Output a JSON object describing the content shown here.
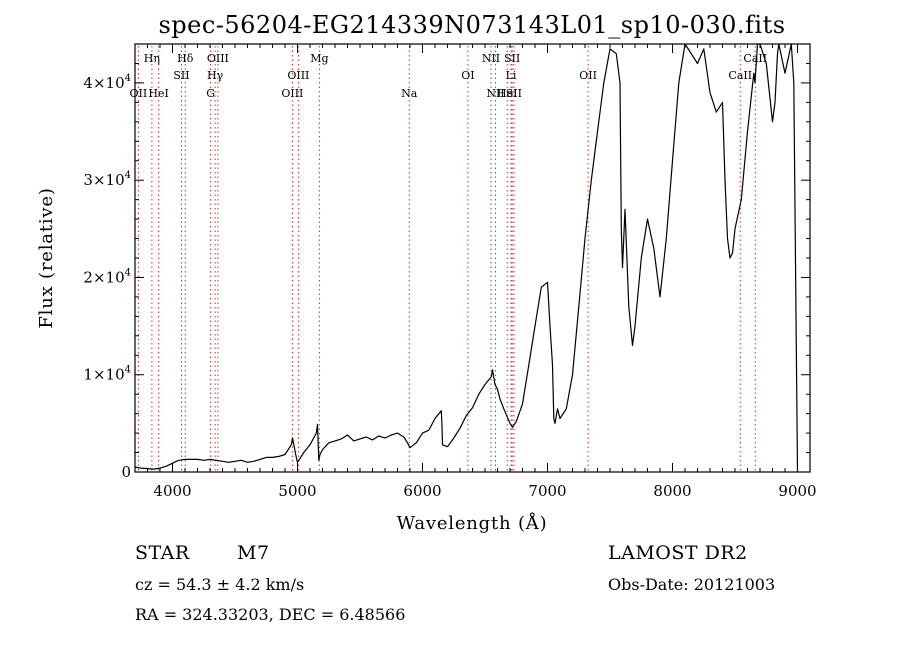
{
  "chart_data": {
    "type": "line",
    "title": "spec-56204-EG214339N073143L01_sp10-030.fits",
    "xlabel": "Wavelength (Å)",
    "ylabel": "Flux (relative)",
    "xlim": [
      3700,
      9100
    ],
    "ylim": [
      0,
      44000
    ],
    "x_ticks": [
      4000,
      5000,
      6000,
      7000,
      8000,
      9000
    ],
    "x_tick_labels": [
      "4000",
      "5000",
      "6000",
      "7000",
      "8000",
      "9000"
    ],
    "y_ticks": [
      0,
      10000,
      20000,
      30000,
      40000
    ],
    "y_tick_labels": [
      {
        "mant": "0",
        "exp": ""
      },
      {
        "mant": "1×10",
        "exp": "4"
      },
      {
        "mant": "2×10",
        "exp": "4"
      },
      {
        "mant": "3×10",
        "exp": "4"
      },
      {
        "mant": "4×10",
        "exp": "4"
      }
    ],
    "series": [
      {
        "x": [
          3700,
          3750,
          3800,
          3850,
          3900,
          3950,
          4000,
          4050,
          4100,
          4150,
          4200,
          4250,
          4300,
          4350,
          4400,
          4450,
          4500,
          4550,
          4600,
          4650,
          4700,
          4750,
          4800,
          4850,
          4900,
          4950,
          4960,
          4990,
          5000,
          5050,
          5100,
          5150,
          5160,
          5170,
          5180,
          5200,
          5250,
          5300,
          5350,
          5400,
          5450,
          5500,
          5550,
          5600,
          5650,
          5700,
          5750,
          5800,
          5850,
          5880,
          5900,
          5950,
          6000,
          6050,
          6100,
          6150,
          6155,
          6160,
          6200,
          6250,
          6300,
          6350,
          6400,
          6450,
          6500,
          6550,
          6560,
          6580,
          6600,
          6620,
          6650,
          6700,
          6720,
          6750,
          6800,
          6850,
          6900,
          6950,
          7000,
          7020,
          7040,
          7050,
          7060,
          7080,
          7100,
          7150,
          7200,
          7250,
          7300,
          7350,
          7400,
          7450,
          7500,
          7550,
          7580,
          7590,
          7600,
          7620,
          7650,
          7680,
          7700,
          7750,
          7800,
          7850,
          7900,
          7950,
          8000,
          8050,
          8100,
          8150,
          8200,
          8250,
          8300,
          8350,
          8400,
          8420,
          8440,
          8460,
          8480,
          8500,
          8550,
          8600,
          8650,
          8660,
          8680,
          8700,
          8750,
          8800,
          8820,
          8840,
          8850,
          8900,
          8950,
          8970,
          9000
        ],
        "y": [
          500,
          400,
          350,
          300,
          400,
          600,
          900,
          1200,
          1300,
          1300,
          1300,
          1200,
          1300,
          1200,
          1100,
          1000,
          1100,
          1200,
          1000,
          1100,
          1300,
          1500,
          1500,
          1600,
          1800,
          2800,
          3500,
          1500,
          1000,
          2000,
          2800,
          4000,
          4900,
          1200,
          1800,
          2300,
          3000,
          3200,
          3400,
          3800,
          3200,
          3400,
          3600,
          3300,
          3700,
          3500,
          3800,
          4000,
          3600,
          3000,
          2500,
          3000,
          4000,
          4300,
          5500,
          6300,
          5000,
          2800,
          2600,
          3500,
          4500,
          5800,
          6600,
          8000,
          9000,
          9800,
          10500,
          9000,
          8500,
          7500,
          6500,
          5000,
          4600,
          5200,
          7000,
          11000,
          15000,
          19000,
          19500,
          15000,
          11000,
          5500,
          5000,
          6500,
          5500,
          6500,
          10000,
          17000,
          24000,
          30000,
          35000,
          40000,
          43500,
          43000,
          40000,
          25000,
          21000,
          27000,
          17000,
          13000,
          15000,
          22000,
          26000,
          23000,
          18000,
          24000,
          32000,
          40000,
          44000,
          43000,
          42000,
          43500,
          39000,
          37000,
          38000,
          30000,
          24000,
          22000,
          22500,
          25000,
          28000,
          35000,
          41000,
          40000,
          44000,
          45000,
          42000,
          36000,
          38000,
          43000,
          44000,
          41000,
          44000,
          40000,
          0
        ]
      }
    ],
    "lines": [
      {
        "label": "OII",
        "x": 3727,
        "row": 3
      },
      {
        "label": "Hη",
        "x": 3835,
        "row": 1
      },
      {
        "label": "HeI",
        "x": 3889,
        "row": 3
      },
      {
        "label": "Hδ",
        "x": 4102,
        "row": 1
      },
      {
        "label": "SII",
        "x": 4072,
        "row": 2
      },
      {
        "label": "OIII",
        "x": 4363,
        "row": 1
      },
      {
        "label": "Hγ",
        "x": 4341,
        "row": 2
      },
      {
        "label": "G",
        "x": 4305,
        "row": 3
      },
      {
        "label": "OIII",
        "x": 5007,
        "row": 2
      },
      {
        "label": "OIII",
        "x": 4959,
        "row": 3
      },
      {
        "label": "Mg",
        "x": 5175,
        "row": 1
      },
      {
        "label": "Na",
        "x": 5894,
        "row": 3
      },
      {
        "label": "OI",
        "x": 6363,
        "row": 2
      },
      {
        "label": "NII",
        "x": 6548,
        "row": 1
      },
      {
        "label": "NII",
        "x": 6584,
        "row": 3
      },
      {
        "label": "SII",
        "x": 6717,
        "row": 1
      },
      {
        "label": "Li",
        "x": 6708,
        "row": 2
      },
      {
        "label": "HeI",
        "x": 6678,
        "row": 3
      },
      {
        "label": "SII",
        "x": 6731,
        "row": 3
      },
      {
        "label": "OII",
        "x": 7325,
        "row": 2
      },
      {
        "label": "CaII",
        "x": 8662,
        "row": 1
      },
      {
        "label": "CaII",
        "x": 8542,
        "row": 2
      }
    ],
    "grid": false,
    "legend": "none"
  },
  "info": {
    "class_label": "STAR",
    "subclass": "M7",
    "cz": "cz = 54.3 ± 4.2 km/s",
    "radec": "RA = 324.33203, DEC =   6.48566",
    "survey": "LAMOST DR2",
    "obs_date": "Obs-Date: 20121003"
  }
}
